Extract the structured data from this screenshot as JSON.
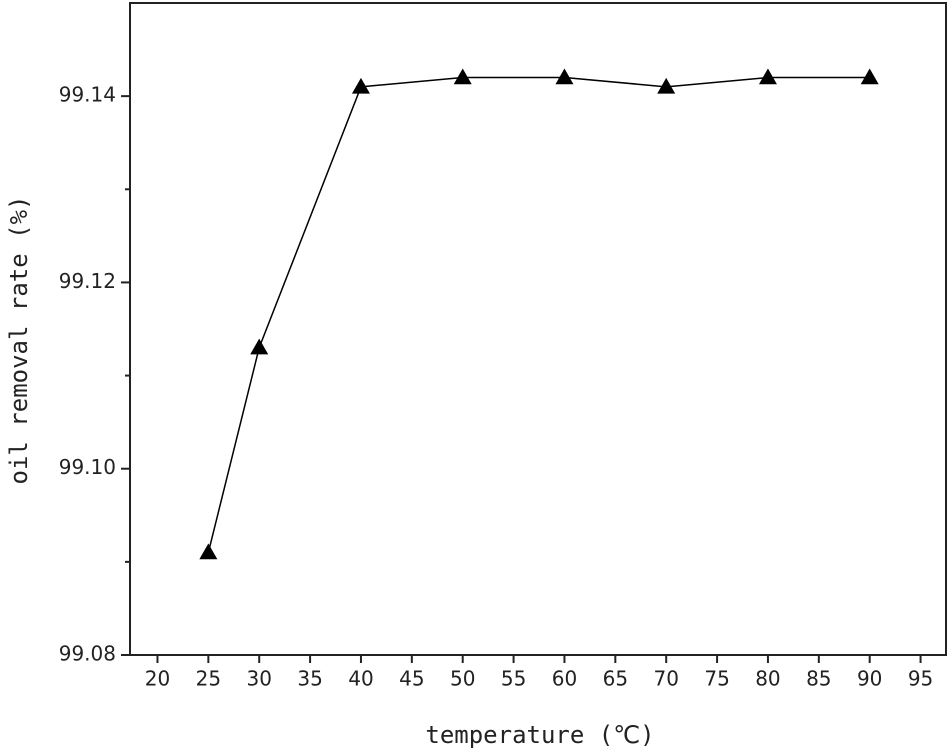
{
  "chart_data": {
    "type": "line",
    "xlabel": "temperature (℃)",
    "ylabel": "oil removal rate (%)",
    "x": [
      25,
      30,
      40,
      50,
      60,
      70,
      80,
      90
    ],
    "series": [
      {
        "color": "#000000",
        "values": [
          99.091,
          99.113,
          99.141,
          99.142,
          99.142,
          99.141,
          99.142,
          99.142
        ]
      }
    ],
    "xlim": [
      17.3,
      97.5
    ],
    "ylim": [
      99.08,
      99.15
    ],
    "xticks": [
      20,
      25,
      30,
      35,
      40,
      45,
      50,
      55,
      60,
      65,
      70,
      75,
      80,
      85,
      90,
      95
    ],
    "yticks": [
      99.08,
      {
        "value": 99.1,
        "label": "99.10"
      },
      99.12,
      99.14
    ],
    "yminorticks": [
      99.09,
      99.11,
      99.13
    ],
    "marker": "triangle",
    "grid": false
  }
}
